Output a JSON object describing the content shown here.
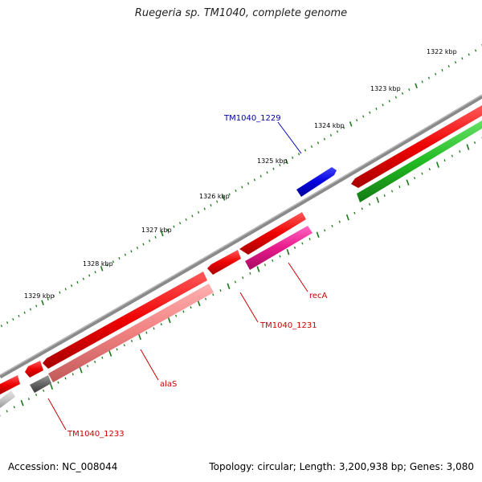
{
  "title": "Ruegeria sp. TM1040, complete genome",
  "footer": {
    "accession": "Accession: NC_008044",
    "topology": "Topology: circular; Length: 3,200,938 bp; Genes: 3,080"
  },
  "kbp_labels": [
    "1322 kbp",
    "1323 kbp",
    "1324 kbp",
    "1325 kbp",
    "1326 kbp",
    "1327 kbp",
    "1328 kbp",
    "1329 kbp"
  ],
  "genes": [
    {
      "name": "TM1040_1229",
      "color": "#0000cc",
      "strand": "forward"
    },
    {
      "name": "recA",
      "color": "#e8198c",
      "strand": "reverse"
    },
    {
      "name": "TM1040_1231",
      "color": "#ee0000",
      "strand": "reverse"
    },
    {
      "name": "alaS",
      "color": "#f08080",
      "strand": "reverse"
    },
    {
      "name": "TM1040_1233",
      "color": "#666666",
      "strand": "reverse"
    }
  ],
  "colors": {
    "backbone": "#8a8a8a",
    "cds": "#ee0000",
    "rna": "#22bb22",
    "tick": "#1a7a1a",
    "label_red": "#cc0000",
    "label_blue": "#0000aa"
  }
}
